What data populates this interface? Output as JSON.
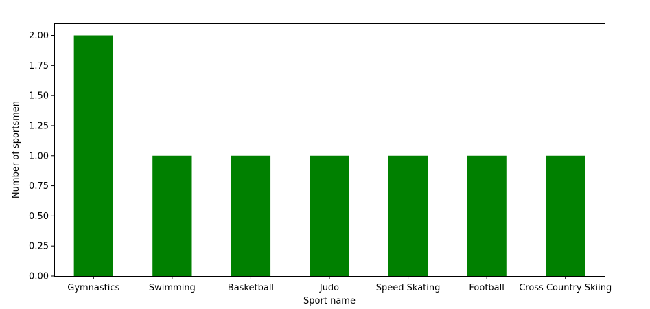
{
  "chart_data": {
    "type": "bar",
    "title": "",
    "xlabel": "Sport name",
    "ylabel": "Number of sportsmen",
    "categories": [
      "Gymnastics",
      "Swimming",
      "Basketball",
      "Judo",
      "Speed Skating",
      "Football",
      "Cross Country Skiing"
    ],
    "values": [
      2,
      1,
      1,
      1,
      1,
      1,
      1
    ],
    "ylim": [
      0,
      2.1
    ],
    "yticks": [
      "0.00",
      "0.25",
      "0.50",
      "0.75",
      "1.00",
      "1.25",
      "1.50",
      "1.75",
      "2.00"
    ],
    "bar_color": "#008000",
    "grid": false,
    "legend": "none"
  }
}
